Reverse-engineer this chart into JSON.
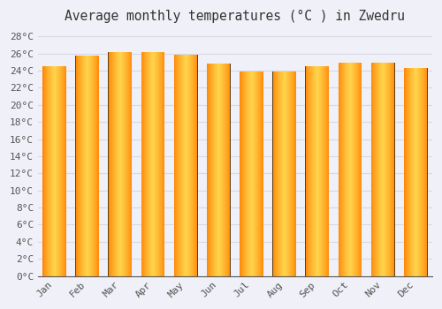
{
  "title": "Average monthly temperatures (°C ) in Zwedru",
  "categories": [
    "Jan",
    "Feb",
    "Mar",
    "Apr",
    "May",
    "Jun",
    "Jul",
    "Aug",
    "Sep",
    "Oct",
    "Nov",
    "Dec"
  ],
  "values": [
    24.5,
    25.7,
    26.2,
    26.2,
    25.8,
    24.8,
    23.9,
    23.9,
    24.5,
    24.9,
    24.9,
    24.3
  ],
  "ylim": [
    0,
    29
  ],
  "yticks": [
    0,
    2,
    4,
    6,
    8,
    10,
    12,
    14,
    16,
    18,
    20,
    22,
    24,
    26,
    28
  ],
  "ytick_labels": [
    "0°C",
    "2°C",
    "4°C",
    "6°C",
    "8°C",
    "10°C",
    "12°C",
    "14°C",
    "16°C",
    "18°C",
    "20°C",
    "22°C",
    "24°C",
    "26°C",
    "28°C"
  ],
  "background_color": "#f0f0f8",
  "plot_bg_color": "#f0f0f8",
  "grid_color": "#d8d8e8",
  "title_fontsize": 10.5,
  "tick_fontsize": 8,
  "bar_color_center": "#FFD44C",
  "bar_color_edge": "#F08000",
  "bar_border_color": "#A05000",
  "bar_width": 0.72
}
